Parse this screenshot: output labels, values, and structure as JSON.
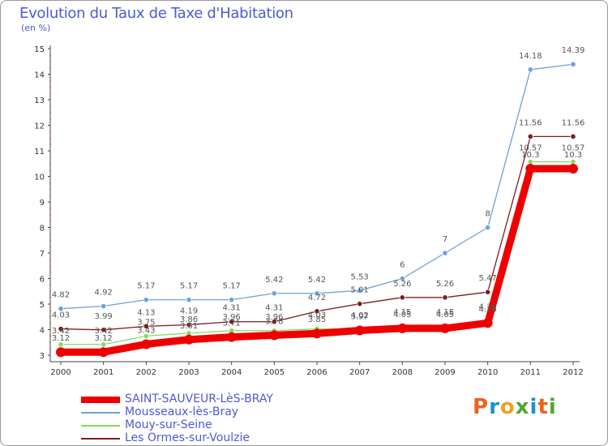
{
  "title": "Evolution du Taux de Taxe d'Habitation",
  "subtitle": "(en %)",
  "logo": {
    "text": "ProXiti",
    "letters": [
      "P",
      "r",
      "o",
      "x",
      "i",
      "t",
      "i"
    ],
    "colors": [
      "#e8641e",
      "#1e8fd0",
      "#f0a020",
      "#4da832",
      "#1e8fd0",
      "#e8641e",
      "#4da832"
    ]
  },
  "chart_data": {
    "type": "line",
    "title": "Evolution du Taux de Taxe d'Habitation",
    "ylabel": "(en %)",
    "xlabel": "",
    "categories": [
      "2000",
      "2001",
      "2002",
      "2003",
      "2004",
      "2005",
      "2006",
      "2007",
      "2008",
      "2009",
      "2010",
      "2011",
      "2012"
    ],
    "ylim": [
      3,
      15
    ],
    "yticks": [
      "3",
      "4",
      "5",
      "6",
      "7",
      "8",
      "9",
      "10",
      "11",
      "12",
      "13",
      "14",
      "15"
    ],
    "grid": false,
    "legend_position": "bottom-left",
    "series": [
      {
        "name": "SAINT-SAUVEUR-LèS-BRAY",
        "color": "#ee0000",
        "width": 9,
        "values": [
          3.12,
          3.12,
          3.43,
          3.61,
          3.71,
          3.78,
          3.85,
          3.97,
          4.05,
          4.05,
          4.26,
          10.3,
          10.3
        ],
        "labels": [
          "3.12",
          "3.12",
          "3.43",
          "3.61",
          "3.71",
          "3.78",
          "3.85",
          "3.97",
          "4.05",
          "4.05",
          "4.26",
          "10.3",
          "10.3"
        ]
      },
      {
        "name": "Mousseaux-lès-Bray",
        "color": "#6fa1d8",
        "width": 1.3,
        "values": [
          4.82,
          4.92,
          5.17,
          5.17,
          5.17,
          5.42,
          5.42,
          5.53,
          6,
          7,
          8,
          14.18,
          14.39
        ],
        "labels": [
          "4.82",
          "4.92",
          "5.17",
          "5.17",
          "5.17",
          "5.42",
          "5.42",
          "5.53",
          "6",
          "7",
          "8",
          "14.18",
          "14.39"
        ]
      },
      {
        "name": "Mouy-sur-Seine",
        "color": "#88d860",
        "width": 1.3,
        "values": [
          3.42,
          3.42,
          3.75,
          3.86,
          3.96,
          3.96,
          4.03,
          4.02,
          4.15,
          4.15,
          4.35,
          10.57,
          10.57
        ],
        "labels": [
          "3.42",
          "3.42",
          "3.75",
          "3.86",
          "3.96",
          "3.96",
          "4.03",
          "4.02",
          "4.15",
          "4.15",
          "4.35",
          "10.57",
          "10.57"
        ]
      },
      {
        "name": "Les Ormes-sur-Voulzie",
        "color": "#7a1f1f",
        "width": 1.3,
        "values": [
          4.03,
          3.99,
          4.13,
          4.19,
          4.31,
          4.31,
          4.72,
          5.01,
          5.26,
          5.26,
          5.47,
          11.56,
          11.56
        ],
        "labels": [
          "4.03",
          "3.99",
          "4.13",
          "4.19",
          "4.31",
          "4.31",
          "4.72",
          "5.01",
          "5.26",
          "5.26",
          "5.47",
          "11.56",
          "11.56"
        ]
      }
    ]
  }
}
